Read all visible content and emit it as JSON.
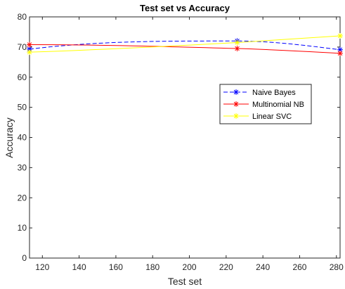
{
  "chart_data": {
    "type": "line",
    "title": "Test set vs Accuracy",
    "xlabel": "Test set",
    "ylabel": "Accuracy",
    "xlim": [
      113,
      282
    ],
    "ylim": [
      0,
      80
    ],
    "xticks": [
      120,
      140,
      160,
      180,
      200,
      220,
      240,
      260,
      280
    ],
    "yticks": [
      0,
      10,
      20,
      30,
      40,
      50,
      60,
      70,
      80
    ],
    "x": [
      113,
      226,
      282
    ],
    "grid": false,
    "legend_position": "center-right",
    "series": [
      {
        "name": "Naive Bayes",
        "values": [
          69.3,
          72.0,
          69.1
        ],
        "color": "#0000ff",
        "line_style": "dashed",
        "marker": "asterisk"
      },
      {
        "name": "Multinomial NB",
        "values": [
          70.8,
          69.5,
          67.9
        ],
        "color": "#ff0000",
        "line_style": "solid",
        "marker": "asterisk"
      },
      {
        "name": "Linear SVC",
        "values": [
          68.3,
          71.5,
          73.7
        ],
        "color": "#ffff00",
        "line_style": "solid",
        "marker": "asterisk"
      }
    ]
  }
}
